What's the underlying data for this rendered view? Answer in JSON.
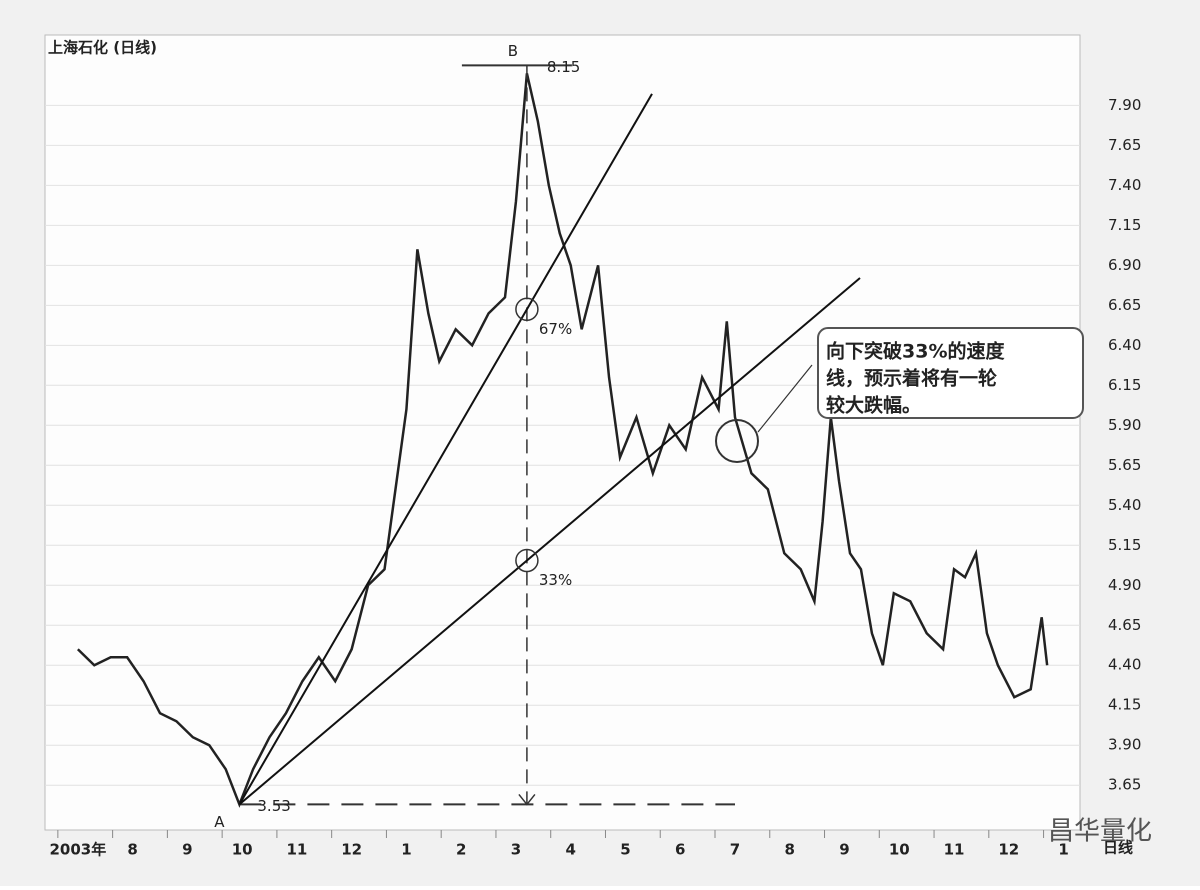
{
  "chart_data": {
    "type": "line",
    "title": "上海石化 (日线)",
    "period_label": "日线",
    "watermark": "昌华量化",
    "series": [
      {
        "name": "上海石化",
        "color": "#222222",
        "x": [
          0,
          0.3,
          0.6,
          0.9,
          1.2,
          1.5,
          1.8,
          2.1,
          2.4,
          2.7,
          2.95,
          3.2,
          3.5,
          3.8,
          4.1,
          4.4,
          4.7,
          5.0,
          5.3,
          5.6,
          5.8,
          6.0,
          6.2,
          6.4,
          6.6,
          6.9,
          7.2,
          7.5,
          7.8,
          8.0,
          8.2,
          8.4,
          8.6,
          8.8,
          9.0,
          9.2,
          9.5,
          9.7,
          9.9,
          10.2,
          10.5,
          10.8,
          11.1,
          11.4,
          11.7,
          11.85,
          12.0,
          12.3,
          12.6,
          12.9,
          13.2,
          13.45,
          13.6,
          13.75,
          13.9,
          14.1,
          14.3,
          14.5,
          14.7,
          14.9,
          15.2,
          15.5,
          15.8,
          16.0,
          16.2,
          16.4,
          16.6,
          16.8,
          17.1,
          17.4,
          17.6,
          17.7
        ],
        "values": [
          4.5,
          4.4,
          4.45,
          4.45,
          4.3,
          4.1,
          4.05,
          3.95,
          3.9,
          3.75,
          3.53,
          3.75,
          3.95,
          4.1,
          4.3,
          4.45,
          4.3,
          4.5,
          4.9,
          5.0,
          5.5,
          6.0,
          7.0,
          6.6,
          6.3,
          6.5,
          6.4,
          6.6,
          6.7,
          7.3,
          8.1,
          7.8,
          7.4,
          7.1,
          6.9,
          6.5,
          6.9,
          6.2,
          5.7,
          5.95,
          5.6,
          5.9,
          5.75,
          6.2,
          6.0,
          6.55,
          5.95,
          5.6,
          5.5,
          5.1,
          5.0,
          4.8,
          5.3,
          5.95,
          5.55,
          5.1,
          5.0,
          4.6,
          4.4,
          4.85,
          4.8,
          4.6,
          4.5,
          5.0,
          4.95,
          5.1,
          4.6,
          4.4,
          4.2,
          4.25,
          4.7,
          4.4
        ]
      }
    ],
    "low": 3.53,
    "low_label": "A",
    "high": 8.15,
    "high_label": "B",
    "speed_lines": [
      {
        "value": 67,
        "label": "67%"
      },
      {
        "value": 33,
        "label": "33%"
      }
    ],
    "callout": [
      "向下突破33%的速度",
      "线，预示着将有一轮",
      "较大跌幅。"
    ],
    "xlim": [
      -0.6,
      18.3
    ],
    "xticks": [
      {
        "value": 0,
        "label": "2003年"
      },
      {
        "value": 1,
        "label": "8"
      },
      {
        "value": 2,
        "label": "9"
      },
      {
        "value": 3,
        "label": "10"
      },
      {
        "value": 4,
        "label": "11"
      },
      {
        "value": 5,
        "label": "12"
      },
      {
        "value": 6,
        "label": "1"
      },
      {
        "value": 7,
        "label": "2"
      },
      {
        "value": 8,
        "label": "3"
      },
      {
        "value": 9,
        "label": "4"
      },
      {
        "value": 10,
        "label": "5"
      },
      {
        "value": 11,
        "label": "6"
      },
      {
        "value": 12,
        "label": "7"
      },
      {
        "value": 13,
        "label": "8"
      },
      {
        "value": 14,
        "label": "9"
      },
      {
        "value": 15,
        "label": "10"
      },
      {
        "value": 16,
        "label": "11"
      },
      {
        "value": 17,
        "label": "12"
      },
      {
        "value": 18,
        "label": "1"
      }
    ],
    "ylim": [
      3.37,
      8.34
    ],
    "yticks": [
      3.65,
      {
        "value": 3.9,
        "label": "3.90"
      },
      4.15,
      {
        "value": 4.4,
        "label": "4.40"
      },
      4.65,
      {
        "value": 4.9,
        "label": "4.90"
      },
      5.15,
      {
        "value": 5.4,
        "label": "5.40"
      },
      5.65,
      {
        "value": 5.9,
        "label": "5.90"
      },
      6.15,
      {
        "value": 6.4,
        "label": "6.40"
      },
      6.65,
      {
        "value": 6.9,
        "label": "6.90"
      },
      7.15,
      {
        "value": 7.4,
        "label": "7.40"
      },
      7.65,
      {
        "value": 7.9,
        "label": "7.90"
      }
    ],
    "grid": true
  }
}
